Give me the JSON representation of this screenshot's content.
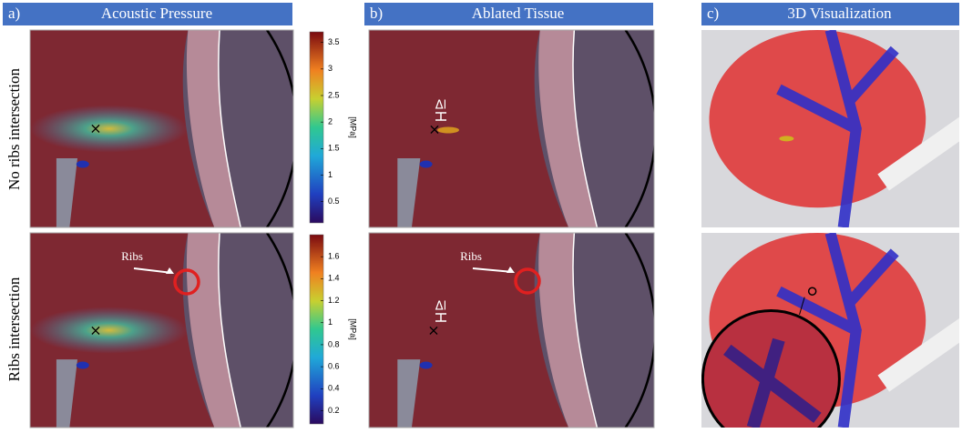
{
  "header": {
    "panels": [
      {
        "letter": "a)",
        "title": "Acoustic Pressure"
      },
      {
        "letter": "b)",
        "title": "Ablated Tissue"
      },
      {
        "letter": "c)",
        "title": "3D Visualization"
      }
    ]
  },
  "rows": [
    {
      "label": "No ribs intersection"
    },
    {
      "label": "Ribs intersection"
    }
  ],
  "colorbars": [
    {
      "unit": "[MPa]",
      "lim": [
        0.1,
        3.7
      ],
      "ticks": [
        0.5,
        1,
        1.5,
        2,
        2.5,
        3,
        3.5
      ]
    },
    {
      "unit": "[MPa]",
      "lim": [
        0.08,
        1.8
      ],
      "ticks": [
        0.2,
        0.4,
        0.6,
        0.8,
        1,
        1.2,
        1.4,
        1.6
      ]
    }
  ],
  "annotations": {
    "ribs": "Ribs",
    "delta": "Δl",
    "marker": "×"
  }
}
